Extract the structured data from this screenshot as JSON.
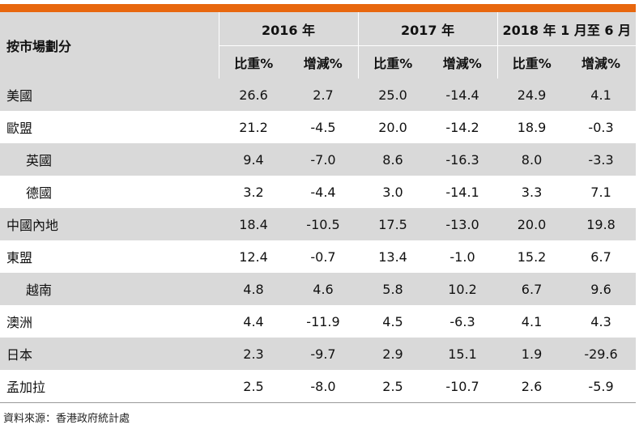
{
  "header": {
    "market_label": "按市場劃分",
    "years": [
      "2016 年",
      "2017 年",
      "2018 年 1 月至 6 月"
    ],
    "share_label": "比重%",
    "change_label": "增減%"
  },
  "rows": [
    {
      "name": "美國",
      "v": [
        "26.6",
        "2.7",
        "25.0",
        "-14.4",
        "24.9",
        "4.1"
      ]
    },
    {
      "name": "歐盟",
      "v": [
        "21.2",
        "-4.5",
        "20.0",
        "-14.2",
        "18.9",
        "-0.3"
      ]
    },
    {
      "name": "英國",
      "v": [
        "9.4",
        "-7.0",
        "8.6",
        "-16.3",
        "8.0",
        "-3.3"
      ]
    },
    {
      "name": "德國",
      "v": [
        "3.2",
        "-4.4",
        "3.0",
        "-14.1",
        "3.3",
        "7.1"
      ]
    },
    {
      "name": "中國內地",
      "v": [
        "18.4",
        "-10.5",
        "17.5",
        "-13.0",
        "20.0",
        "19.8"
      ]
    },
    {
      "name": "東盟",
      "v": [
        "12.4",
        "-0.7",
        "13.4",
        "-1.0",
        "15.2",
        "6.7"
      ]
    },
    {
      "name": "越南",
      "v": [
        "4.8",
        "4.6",
        "5.8",
        "10.2",
        "6.7",
        "9.6"
      ]
    },
    {
      "name": "澳洲",
      "v": [
        "4.4",
        "-11.9",
        "4.5",
        "-6.3",
        "4.1",
        "4.3"
      ]
    },
    {
      "name": "日本",
      "v": [
        "2.3",
        "-9.7",
        "2.9",
        "15.1",
        "1.9",
        "-29.6"
      ]
    },
    {
      "name": "孟加拉",
      "v": [
        "2.5",
        "-8.0",
        "2.5",
        "-10.7",
        "2.6",
        "-5.9"
      ]
    }
  ],
  "source": "資料來源：香港政府統計處"
}
